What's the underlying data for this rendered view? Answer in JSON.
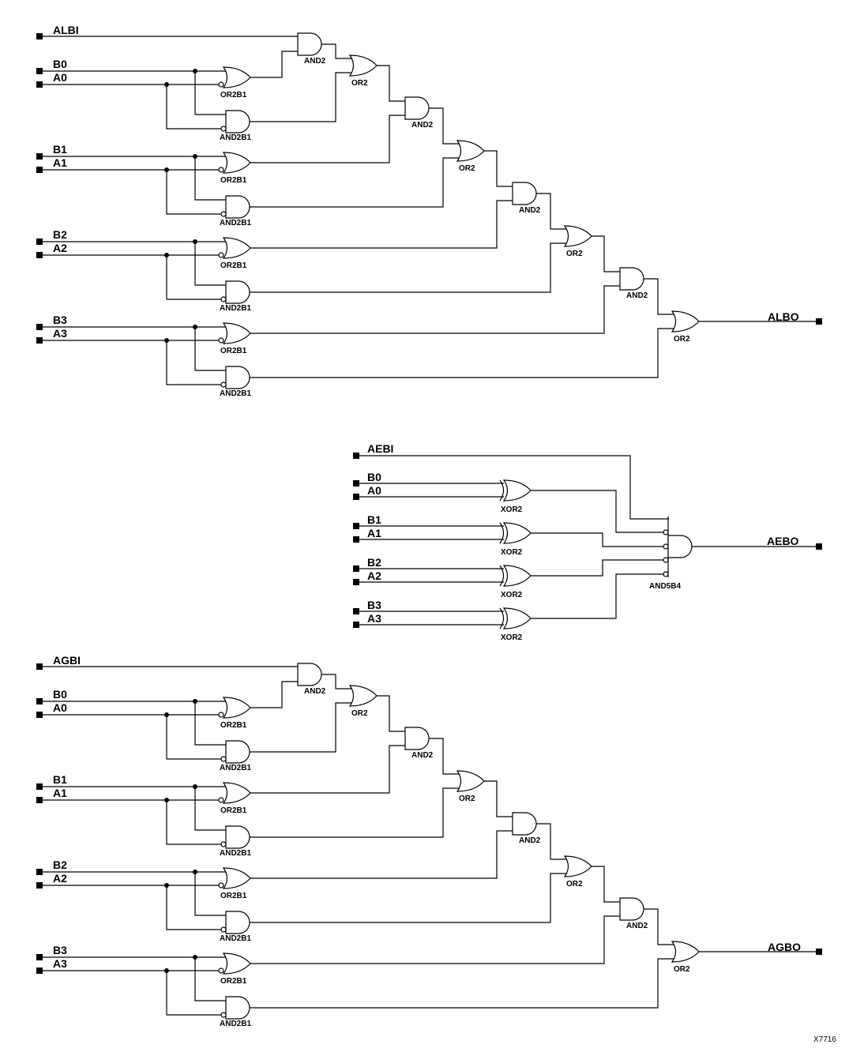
{
  "compare_blocks": [
    {
      "id": "less-than",
      "cascade_input": "ALBI",
      "output": "ALBO",
      "bits": [
        {
          "b": "B0",
          "a": "A0"
        },
        {
          "b": "B1",
          "a": "A1"
        },
        {
          "b": "B2",
          "a": "A2"
        },
        {
          "b": "B3",
          "a": "A3"
        }
      ],
      "gate_labels": {
        "or_inv": "OR2B1",
        "and_inv": "AND2B1",
        "and": "AND2",
        "or": "OR2"
      }
    },
    {
      "id": "greater-than",
      "cascade_input": "AGBI",
      "output": "AGBO",
      "bits": [
        {
          "b": "B0",
          "a": "A0"
        },
        {
          "b": "B1",
          "a": "A1"
        },
        {
          "b": "B2",
          "a": "A2"
        },
        {
          "b": "B3",
          "a": "A3"
        }
      ],
      "gate_labels": {
        "or_inv": "OR2B1",
        "and_inv": "AND2B1",
        "and": "AND2",
        "or": "OR2"
      }
    }
  ],
  "equal_block": {
    "cascade_input": "AEBI",
    "output": "AEBO",
    "bits": [
      {
        "b": "B0",
        "a": "A0"
      },
      {
        "b": "B1",
        "a": "A1"
      },
      {
        "b": "B2",
        "a": "A2"
      },
      {
        "b": "B3",
        "a": "A3"
      }
    ],
    "xor_label": "XOR2",
    "and_label": "AND5B4"
  },
  "figure_id": "X7716"
}
